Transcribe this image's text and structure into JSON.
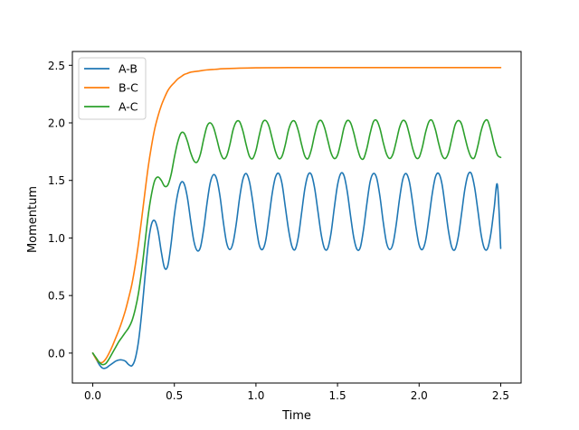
{
  "chart_data": {
    "type": "line",
    "title": "",
    "xlabel": "Time",
    "ylabel": "Momentum",
    "xlim": [
      -0.125,
      2.625
    ],
    "ylim": [
      -0.26,
      2.62
    ],
    "xticks": [
      0.0,
      0.5,
      1.0,
      1.5,
      2.0,
      2.5
    ],
    "xtick_labels": [
      "0.0",
      "0.5",
      "1.0",
      "1.5",
      "2.0",
      "2.5"
    ],
    "yticks": [
      0.0,
      0.5,
      1.0,
      1.5,
      2.0,
      2.5
    ],
    "ytick_labels": [
      "0.0",
      "0.5",
      "1.0",
      "1.5",
      "2.0",
      "2.5"
    ],
    "grid": false,
    "legend_position": "top-left",
    "series": [
      {
        "name": "A-B",
        "color": "#1f77b4",
        "x": [
          0.0,
          0.02,
          0.04,
          0.06,
          0.08,
          0.1,
          0.12,
          0.14,
          0.16,
          0.18,
          0.2,
          0.22,
          0.24,
          0.26,
          0.28,
          0.3,
          0.32,
          0.34,
          0.36,
          0.38,
          0.4,
          0.42,
          0.44,
          0.46,
          0.48,
          0.5,
          0.52,
          0.54,
          0.56,
          0.58,
          0.6,
          0.62,
          0.64,
          0.66,
          0.68,
          0.7,
          0.72,
          0.74,
          0.76,
          0.78,
          0.8,
          0.82,
          0.84,
          0.86,
          0.88,
          0.9,
          0.92,
          0.94,
          0.96,
          0.98,
          1.0,
          1.02,
          1.04,
          1.06,
          1.08,
          1.1,
          1.12,
          1.14,
          1.16,
          1.18,
          1.2,
          1.22,
          1.24,
          1.26,
          1.28,
          1.3,
          1.32,
          1.34,
          1.36,
          1.38,
          1.4,
          1.42,
          1.44,
          1.46,
          1.48,
          1.5,
          1.52,
          1.54,
          1.56,
          1.58,
          1.6,
          1.62,
          1.64,
          1.66,
          1.68,
          1.7,
          1.72,
          1.74,
          1.76,
          1.78,
          1.8,
          1.82,
          1.84,
          1.86,
          1.88,
          1.9,
          1.92,
          1.94,
          1.96,
          1.98,
          2.0,
          2.02,
          2.04,
          2.06,
          2.08,
          2.1,
          2.12,
          2.14,
          2.16,
          2.18,
          2.2,
          2.22,
          2.24,
          2.26,
          2.28,
          2.3,
          2.32,
          2.34,
          2.36,
          2.38,
          2.4,
          2.42,
          2.44,
          2.46,
          2.48,
          2.5
        ],
        "y": [
          0.0,
          -0.05,
          -0.1,
          -0.13,
          -0.13,
          -0.11,
          -0.09,
          -0.07,
          -0.06,
          -0.06,
          -0.07,
          -0.1,
          -0.11,
          -0.05,
          0.1,
          0.35,
          0.66,
          0.95,
          1.12,
          1.15,
          1.06,
          0.88,
          0.74,
          0.76,
          0.95,
          1.2,
          1.38,
          1.48,
          1.47,
          1.35,
          1.15,
          0.97,
          0.89,
          0.92,
          1.08,
          1.3,
          1.48,
          1.55,
          1.51,
          1.36,
          1.14,
          0.96,
          0.9,
          0.96,
          1.13,
          1.35,
          1.51,
          1.56,
          1.49,
          1.32,
          1.11,
          0.94,
          0.9,
          0.98,
          1.18,
          1.39,
          1.53,
          1.56,
          1.47,
          1.27,
          1.07,
          0.93,
          0.9,
          1.01,
          1.22,
          1.43,
          1.55,
          1.55,
          1.43,
          1.23,
          1.03,
          0.91,
          0.91,
          1.04,
          1.26,
          1.46,
          1.56,
          1.54,
          1.4,
          1.19,
          1.0,
          0.9,
          0.92,
          1.08,
          1.3,
          1.49,
          1.56,
          1.52,
          1.36,
          1.14,
          0.96,
          0.9,
          0.95,
          1.12,
          1.34,
          1.51,
          1.56,
          1.49,
          1.31,
          1.1,
          0.94,
          0.9,
          0.98,
          1.17,
          1.38,
          1.53,
          1.56,
          1.47,
          1.27,
          1.06,
          0.92,
          0.9,
          1.01,
          1.21,
          1.42,
          1.55,
          1.56,
          1.44,
          1.24,
          1.03,
          0.91,
          0.91,
          1.04,
          1.26,
          1.46,
          0.91
        ]
      },
      {
        "name": "B-C",
        "color": "#ff7f0e",
        "x": [
          0.0,
          0.02,
          0.04,
          0.06,
          0.08,
          0.1,
          0.12,
          0.14,
          0.16,
          0.18,
          0.2,
          0.22,
          0.24,
          0.26,
          0.28,
          0.3,
          0.32,
          0.34,
          0.36,
          0.38,
          0.4,
          0.42,
          0.44,
          0.46,
          0.48,
          0.5,
          0.52,
          0.54,
          0.56,
          0.58,
          0.6,
          0.65,
          0.7,
          0.75,
          0.8,
          0.9,
          1.0,
          1.1,
          1.2,
          1.4,
          1.6,
          1.8,
          2.0,
          2.2,
          2.4,
          2.5
        ],
        "y": [
          0.0,
          -0.05,
          -0.08,
          -0.08,
          -0.05,
          0.0,
          0.06,
          0.13,
          0.2,
          0.28,
          0.37,
          0.48,
          0.6,
          0.76,
          0.95,
          1.17,
          1.4,
          1.62,
          1.8,
          1.95,
          2.06,
          2.15,
          2.22,
          2.28,
          2.32,
          2.35,
          2.38,
          2.4,
          2.42,
          2.43,
          2.44,
          2.45,
          2.46,
          2.465,
          2.47,
          2.475,
          2.478,
          2.479,
          2.48,
          2.48,
          2.48,
          2.48,
          2.48,
          2.48,
          2.48,
          2.48
        ]
      },
      {
        "name": "A-C",
        "color": "#2ca02c",
        "x": [
          0.0,
          0.02,
          0.04,
          0.06,
          0.08,
          0.1,
          0.12,
          0.14,
          0.16,
          0.18,
          0.2,
          0.22,
          0.24,
          0.26,
          0.28,
          0.3,
          0.32,
          0.34,
          0.36,
          0.38,
          0.4,
          0.42,
          0.44,
          0.46,
          0.48,
          0.5,
          0.52,
          0.54,
          0.56,
          0.58,
          0.6,
          0.62,
          0.64,
          0.66,
          0.68,
          0.7,
          0.72,
          0.74,
          0.76,
          0.78,
          0.8,
          0.82,
          0.84,
          0.86,
          0.88,
          0.9,
          0.92,
          0.94,
          0.96,
          0.98,
          1.0,
          1.02,
          1.04,
          1.06,
          1.08,
          1.1,
          1.12,
          1.14,
          1.16,
          1.18,
          1.2,
          1.22,
          1.24,
          1.26,
          1.28,
          1.3,
          1.32,
          1.34,
          1.36,
          1.38,
          1.4,
          1.42,
          1.44,
          1.46,
          1.48,
          1.5,
          1.52,
          1.54,
          1.56,
          1.58,
          1.6,
          1.62,
          1.64,
          1.66,
          1.68,
          1.7,
          1.72,
          1.74,
          1.76,
          1.78,
          1.8,
          1.82,
          1.84,
          1.86,
          1.88,
          1.9,
          1.92,
          1.94,
          1.96,
          1.98,
          2.0,
          2.02,
          2.04,
          2.06,
          2.08,
          2.1,
          2.12,
          2.14,
          2.16,
          2.18,
          2.2,
          2.22,
          2.24,
          2.26,
          2.28,
          2.3,
          2.32,
          2.34,
          2.36,
          2.38,
          2.4,
          2.42,
          2.44,
          2.46,
          2.48,
          2.5
        ],
        "y": [
          0.0,
          -0.04,
          -0.08,
          -0.1,
          -0.09,
          -0.05,
          0.0,
          0.05,
          0.1,
          0.14,
          0.18,
          0.22,
          0.28,
          0.38,
          0.52,
          0.72,
          0.96,
          1.2,
          1.38,
          1.5,
          1.53,
          1.5,
          1.45,
          1.46,
          1.55,
          1.7,
          1.83,
          1.91,
          1.91,
          1.84,
          1.74,
          1.67,
          1.66,
          1.73,
          1.86,
          1.97,
          2.0,
          1.96,
          1.86,
          1.75,
          1.69,
          1.71,
          1.81,
          1.94,
          2.01,
          2.01,
          1.93,
          1.81,
          1.71,
          1.69,
          1.76,
          1.89,
          2.0,
          2.02,
          1.97,
          1.86,
          1.75,
          1.69,
          1.71,
          1.81,
          1.94,
          2.01,
          2.01,
          1.93,
          1.81,
          1.71,
          1.69,
          1.77,
          1.9,
          2.0,
          2.02,
          1.96,
          1.85,
          1.74,
          1.69,
          1.72,
          1.83,
          1.96,
          2.02,
          2.0,
          1.91,
          1.79,
          1.7,
          1.69,
          1.78,
          1.91,
          2.01,
          2.02,
          1.95,
          1.83,
          1.73,
          1.69,
          1.73,
          1.84,
          1.96,
          2.02,
          2.0,
          1.9,
          1.78,
          1.7,
          1.7,
          1.79,
          1.92,
          2.01,
          2.02,
          1.94,
          1.82,
          1.72,
          1.69,
          1.74,
          1.86,
          1.98,
          2.02,
          1.99,
          1.88,
          1.77,
          1.7,
          1.7,
          1.8,
          1.93,
          2.01,
          2.02,
          1.93,
          1.81,
          1.72,
          1.7
        ]
      }
    ]
  }
}
